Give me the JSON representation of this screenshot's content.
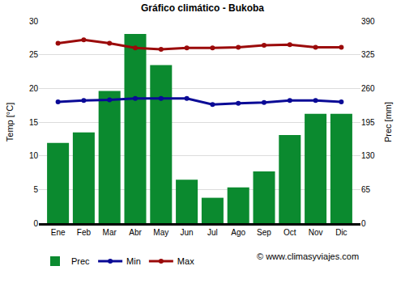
{
  "chart_data": {
    "type": "bar",
    "title": "Gráfico climático - Bukoba",
    "y_label": "Temp [°C]",
    "y2_label": "Prec [mm]",
    "annotations": [
      "© www.climasyviajes.com"
    ],
    "categories": [
      "Ene",
      "Feb",
      "Mar",
      "Abr",
      "May",
      "Jun",
      "Jul",
      "Ago",
      "Sep",
      "Oct",
      "Nov",
      "Dic"
    ],
    "series": [
      {
        "name": "Prec",
        "type": "bar",
        "axis": "y2",
        "color": "#0b8a2f",
        "values": [
          155,
          175,
          255,
          365,
          305,
          84,
          49,
          69,
          100,
          170,
          211,
          211
        ]
      },
      {
        "name": "Min",
        "type": "line",
        "color": "#0a0a96",
        "marker": "circle",
        "values": [
          18.0,
          18.2,
          18.3,
          18.5,
          18.5,
          18.5,
          17.6,
          17.8,
          17.9,
          18.2,
          18.2,
          18.0
        ]
      },
      {
        "name": "Max",
        "type": "line",
        "color": "#9b0a0a",
        "marker": "circle",
        "values": [
          26.7,
          27.2,
          26.7,
          26.0,
          25.8,
          26.0,
          26.0,
          26.1,
          26.4,
          26.5,
          26.1,
          26.1
        ]
      }
    ],
    "ylim": [
      0,
      30
    ],
    "yticks": [
      0,
      5,
      10,
      15,
      20,
      25,
      30
    ],
    "y2lim": [
      0,
      390
    ],
    "y2ticks": [
      0,
      65,
      130,
      195,
      260,
      325,
      390
    ],
    "grid": true,
    "legend": "bottom left"
  }
}
